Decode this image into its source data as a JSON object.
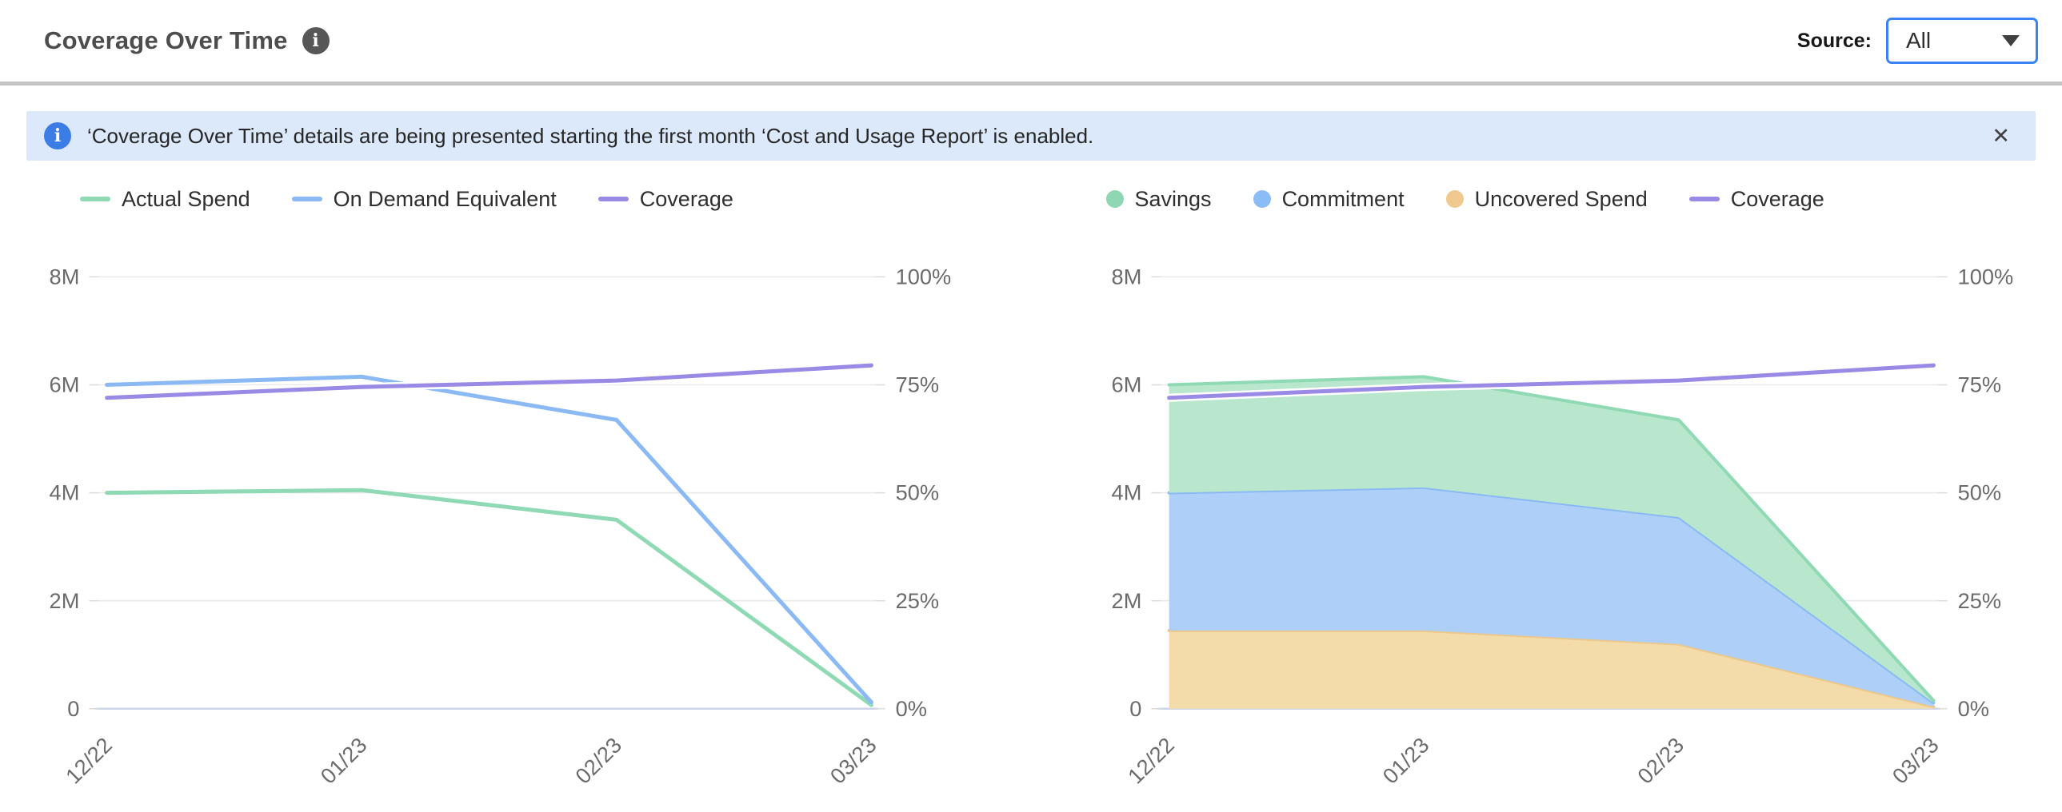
{
  "header": {
    "title": "Coverage Over Time",
    "source_label": "Source:",
    "source_value": "All"
  },
  "icons": {
    "info": "i",
    "close": "✕"
  },
  "banner": {
    "text": "‘Coverage Over Time’ details are being presented starting the first month ‘Cost and Usage Report’ is enabled."
  },
  "chart_data": [
    {
      "id": "coverage-lines",
      "type": "line",
      "title": "",
      "categories": [
        "12/22",
        "01/23",
        "02/23",
        "03/23"
      ],
      "y_left": {
        "min": 0,
        "max": 8000000,
        "tick_labels": [
          "8M",
          "6M",
          "4M",
          "2M",
          "0"
        ],
        "tick_values": [
          8000000,
          6000000,
          4000000,
          2000000,
          0
        ],
        "grid": true
      },
      "y_right": {
        "min": 0,
        "max": 100,
        "tick_labels": [
          "100%",
          "75%",
          "50%",
          "25%",
          "0%"
        ],
        "tick_values": [
          100,
          75,
          50,
          25,
          0
        ]
      },
      "legend": [
        {
          "label": "Actual Spend",
          "swatch": "line",
          "color": "#8fdab5"
        },
        {
          "label": "On Demand Equivalent",
          "swatch": "line",
          "color": "#8ab9f3"
        },
        {
          "label": "Coverage",
          "swatch": "line",
          "color": "#9a8ae6"
        }
      ],
      "series": [
        {
          "name": "Actual Spend",
          "type": "line",
          "axis": "left",
          "color": "#8fdab5",
          "values": [
            4000000,
            4050000,
            3500000,
            70000
          ]
        },
        {
          "name": "On Demand Equivalent",
          "type": "line",
          "axis": "left",
          "color": "#8ab9f3",
          "values": [
            6000000,
            6150000,
            5350000,
            120000
          ]
        },
        {
          "name": "Coverage",
          "type": "line",
          "axis": "right",
          "color": "#9a8ae6",
          "halo": true,
          "unit": "%",
          "values": [
            72,
            74.5,
            76,
            79.5
          ]
        }
      ]
    },
    {
      "id": "coverage-areas",
      "type": "area-stacked",
      "title": "",
      "categories": [
        "12/22",
        "01/23",
        "02/23",
        "03/23"
      ],
      "y_left": {
        "min": 0,
        "max": 8000000,
        "tick_labels": [
          "8M",
          "6M",
          "4M",
          "2M",
          "0"
        ],
        "tick_values": [
          8000000,
          6000000,
          4000000,
          2000000,
          0
        ],
        "grid": true
      },
      "y_right": {
        "min": 0,
        "max": 100,
        "tick_labels": [
          "100%",
          "75%",
          "50%",
          "25%",
          "0%"
        ],
        "tick_values": [
          100,
          75,
          50,
          25,
          0
        ]
      },
      "legend": [
        {
          "label": "Savings",
          "swatch": "dot",
          "color": "#8fd6b3"
        },
        {
          "label": "Commitment",
          "swatch": "dot",
          "color": "#8cbcf5"
        },
        {
          "label": "Uncovered Spend",
          "swatch": "dot",
          "color": "#f0c98e"
        },
        {
          "label": "Coverage",
          "swatch": "line",
          "color": "#9a8ae6"
        }
      ],
      "series": [
        {
          "name": "Uncovered Spend",
          "type": "area",
          "stack": true,
          "axis": "left",
          "color": "#edc88b",
          "fill": "#f4dcaa",
          "values": [
            1450000,
            1450000,
            1200000,
            40000
          ]
        },
        {
          "name": "Commitment",
          "type": "area",
          "stack": true,
          "axis": "left",
          "color": "#8ab9f3",
          "fill": "#aed0f8",
          "values": [
            2550000,
            2650000,
            2350000,
            70000
          ]
        },
        {
          "name": "Savings",
          "type": "area",
          "stack": true,
          "axis": "left",
          "color": "#8fdab5",
          "fill": "#b9e7cd",
          "values": [
            2000000,
            2050000,
            1800000,
            40000
          ]
        },
        {
          "name": "Coverage",
          "type": "line",
          "axis": "right",
          "color": "#9a8ae6",
          "halo": true,
          "unit": "%",
          "values": [
            72,
            74.5,
            76,
            79.5
          ]
        }
      ]
    }
  ]
}
